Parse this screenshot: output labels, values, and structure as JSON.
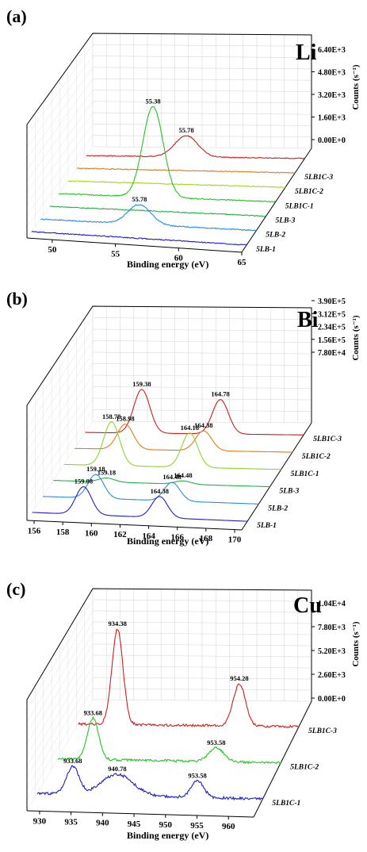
{
  "chart_data": [
    {
      "panel_label": "(a)",
      "element": "Li",
      "type": "line",
      "view": "3d-waterfall",
      "xlabel": "Binding energy (eV)",
      "zlabel": "Counts (s⁻¹)",
      "xlim": [
        48,
        65
      ],
      "xticks": [
        "50",
        "55",
        "60",
        "65"
      ],
      "xtick_values": [
        50,
        55,
        60,
        65
      ],
      "zlim": [
        0,
        6400
      ],
      "zticks": [
        "0.00E+0",
        "1.60E+3",
        "3.20E+3",
        "4.80E+3",
        "6.40E+3"
      ],
      "series": [
        {
          "name": "5LB-1",
          "color": "#1f1fc0",
          "noise": 70,
          "peaks": []
        },
        {
          "name": "5LB-2",
          "color": "#2f8ae0",
          "noise": 70,
          "peaks": [
            {
              "x": 55.78,
              "height": 1400,
              "width": 0.9
            }
          ]
        },
        {
          "name": "5LB-3",
          "color": "#22b04a",
          "noise": 60,
          "peaks": []
        },
        {
          "name": "5LB1C-1",
          "color": "#27c227",
          "noise": 70,
          "peaks": [
            {
              "x": 55.38,
              "height": 6400,
              "width": 0.8
            }
          ]
        },
        {
          "name": "5LB1C-2",
          "color": "#a0d820",
          "noise": 60,
          "peaks": []
        },
        {
          "name": "5LB1C-3",
          "color": "#e07b20",
          "noise": 60,
          "peaks": []
        },
        {
          "name": "",
          "color": "#cc1f1f",
          "noise": 60,
          "peaks": [
            {
              "x": 55.78,
              "height": 1500,
              "width": 0.9
            }
          ]
        }
      ],
      "annotations": [
        {
          "text": "55.38",
          "series": 3,
          "x": 55.38
        },
        {
          "text": "55.78",
          "series": 6,
          "x": 55.78
        },
        {
          "text": "55.78",
          "series": 1,
          "x": 55.78
        }
      ]
    },
    {
      "panel_label": "(b)",
      "element": "Bi",
      "type": "line",
      "view": "3d-waterfall",
      "xlabel": "Binding energy (eV)",
      "zlabel": "Counts (s⁻¹)",
      "xlim": [
        155.5,
        170.5
      ],
      "xticks": [
        "156",
        "158",
        "160",
        "162",
        "164",
        "166",
        "168",
        "170"
      ],
      "xtick_values": [
        156,
        158,
        160,
        162,
        164,
        166,
        168,
        170
      ],
      "zlim": [
        0,
        390000
      ],
      "zticks": [
        "7.80E+4",
        "1.56E+5",
        "2.34E+5",
        "3.12E+5",
        "3.90E+5"
      ],
      "series": [
        {
          "name": "5LB-1",
          "color": "#1f1fc0",
          "noise": 0,
          "peaks": [
            {
              "x": 159.08,
              "height": 210000,
              "width": 0.55
            },
            {
              "x": 164.38,
              "height": 160000,
              "width": 0.55
            }
          ]
        },
        {
          "name": "5LB-2",
          "color": "#2f8ae0",
          "noise": 0,
          "peaks": [
            {
              "x": 159.18,
              "height": 180000,
              "width": 0.55
            },
            {
              "x": 164.48,
              "height": 140000,
              "width": 0.55
            }
          ]
        },
        {
          "name": "5LB-3",
          "color": "#22b04a",
          "noise": 0,
          "peaks": [
            {
              "x": 159.18,
              "height": 30000,
              "width": 0.55
            },
            {
              "x": 164.48,
              "height": 25000,
              "width": 0.55
            }
          ]
        },
        {
          "name": "5LB1C-1",
          "color": "#8cd62a",
          "noise": 0,
          "peaks": [
            {
              "x": 158.78,
              "height": 330000,
              "width": 0.55
            },
            {
              "x": 164.18,
              "height": 260000,
              "width": 0.55
            }
          ]
        },
        {
          "name": "5LB1C-2",
          "color": "#e07b20",
          "noise": 0,
          "peaks": [
            {
              "x": 158.98,
              "height": 190000,
              "width": 0.55
            },
            {
              "x": 164.38,
              "height": 150000,
              "width": 0.55
            }
          ]
        },
        {
          "name": "5LB1C-3",
          "color": "#cc1f1f",
          "noise": 0,
          "peaks": [
            {
              "x": 159.38,
              "height": 330000,
              "width": 0.55
            },
            {
              "x": 164.78,
              "height": 260000,
              "width": 0.55
            }
          ]
        }
      ],
      "annotations": [
        {
          "text": "158.78",
          "series": 3,
          "x": 158.78
        },
        {
          "text": "159.38",
          "series": 5,
          "x": 159.38
        },
        {
          "text": "164.18",
          "series": 3,
          "x": 164.18
        },
        {
          "text": "164.78",
          "series": 5,
          "x": 164.78
        },
        {
          "text": "158.98",
          "series": 4,
          "x": 158.98
        },
        {
          "text": "164.38",
          "series": 4,
          "x": 164.38
        },
        {
          "text": "159.08",
          "series": 0,
          "x": 159.08
        },
        {
          "text": "159.18",
          "series": 1,
          "x": 159.18
        },
        {
          "text": "159.18",
          "series": 2,
          "x": 159.18
        },
        {
          "text": "164.38",
          "series": 0,
          "x": 164.38
        },
        {
          "text": "164.48",
          "series": 1,
          "x": 164.48
        },
        {
          "text": "164.48",
          "series": 2,
          "x": 164.48
        }
      ]
    },
    {
      "panel_label": "(c)",
      "element": "Cu",
      "type": "line",
      "view": "3d-waterfall",
      "xlabel": "Binding energy (eV)",
      "zlabel": "Counts (s⁻¹)",
      "xlim": [
        928,
        964
      ],
      "xticks": [
        "930",
        "935",
        "940",
        "945",
        "950",
        "955",
        "960"
      ],
      "xtick_values": [
        930,
        935,
        940,
        945,
        950,
        955,
        960
      ],
      "zlim": [
        0,
        10400
      ],
      "zticks": [
        "0.00E+0",
        "2.60E+3",
        "5.20E+3",
        "7.80E+3",
        "1.04E+4"
      ],
      "series": [
        {
          "name": "5LB1C-1",
          "color": "#1f1fc0",
          "noise": 300,
          "peaks": [
            {
              "x": 933.68,
              "height": 3000,
              "width": 1.0
            },
            {
              "x": 940.78,
              "height": 2300,
              "width": 2.5
            },
            {
              "x": 953.58,
              "height": 1800,
              "width": 1.0
            }
          ]
        },
        {
          "name": "5LB1C-2",
          "color": "#27c227",
          "noise": 260,
          "peaks": [
            {
              "x": 933.68,
              "height": 4500,
              "width": 0.9
            },
            {
              "x": 953.58,
              "height": 1500,
              "width": 1.2
            }
          ]
        },
        {
          "name": "5LB1C-3",
          "color": "#cc1f1f",
          "noise": 260,
          "peaks": [
            {
              "x": 934.38,
              "height": 10400,
              "width": 0.9
            },
            {
              "x": 954.28,
              "height": 4600,
              "width": 1.0
            }
          ]
        }
      ],
      "annotations": [
        {
          "text": "934.38",
          "series": 2,
          "x": 934.38
        },
        {
          "text": "954.28",
          "series": 2,
          "x": 954.28
        },
        {
          "text": "933.68",
          "series": 1,
          "x": 933.68
        },
        {
          "text": "953.58",
          "series": 1,
          "x": 953.58
        },
        {
          "text": "933.68",
          "series": 0,
          "x": 933.68
        },
        {
          "text": "940.78",
          "series": 0,
          "x": 940.78
        },
        {
          "text": "953.58",
          "series": 0,
          "x": 953.58
        }
      ]
    }
  ]
}
